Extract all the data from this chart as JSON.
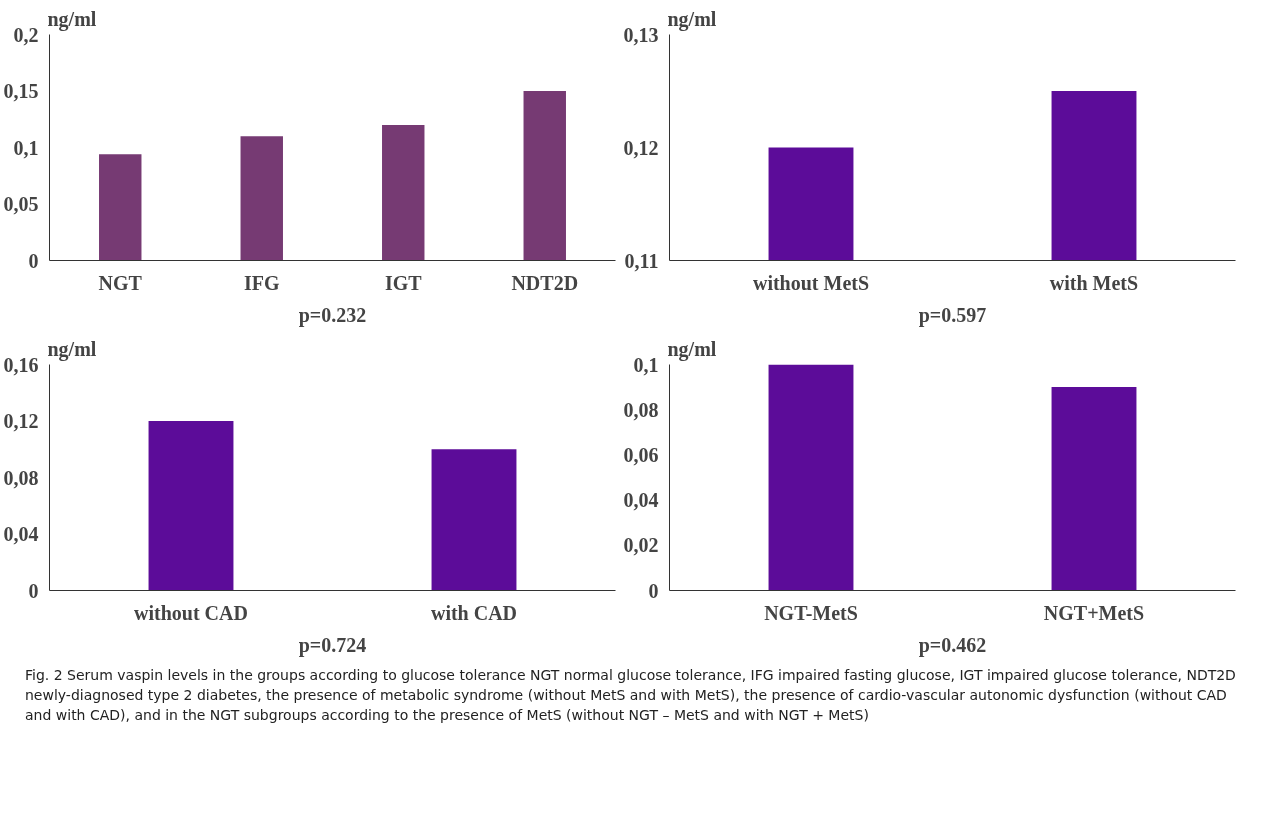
{
  "chart_data": [
    {
      "type": "bar",
      "ylabel": "ng/ml",
      "categories": [
        "NGT",
        "IFG",
        "IGT",
        "NDT2D"
      ],
      "values": [
        0.094,
        0.11,
        0.12,
        0.15
      ],
      "color": "#763a73",
      "ylim": [
        0,
        0.2
      ],
      "yticks": [
        {
          "value": 0,
          "label": "0"
        },
        {
          "value": 0.05,
          "label": "0,05"
        },
        {
          "value": 0.1,
          "label": "0,1"
        },
        {
          "value": 0.15,
          "label": "0,15"
        },
        {
          "value": 0.2,
          "label": "0,2"
        }
      ],
      "grid": false,
      "annotations": [
        "p=0.232"
      ]
    },
    {
      "type": "bar",
      "ylabel": "ng/ml",
      "categories": [
        "without MetS",
        "with MetS"
      ],
      "values": [
        0.12,
        0.125
      ],
      "color": "#5c0c99",
      "ylim": [
        0.11,
        0.13
      ],
      "yticks": [
        {
          "value": 0.11,
          "label": "0,11"
        },
        {
          "value": 0.12,
          "label": "0,12"
        },
        {
          "value": 0.13,
          "label": "0,13"
        }
      ],
      "grid": false,
      "annotations": [
        "p=0.597"
      ]
    },
    {
      "type": "bar",
      "ylabel": "ng/ml",
      "categories": [
        "without CAD",
        "with CAD"
      ],
      "values": [
        0.12,
        0.1
      ],
      "color": "#5c0c99",
      "ylim": [
        0,
        0.16
      ],
      "yticks": [
        {
          "value": 0,
          "label": "0"
        },
        {
          "value": 0.04,
          "label": "0,04"
        },
        {
          "value": 0.08,
          "label": "0,08"
        },
        {
          "value": 0.12,
          "label": "0,12"
        },
        {
          "value": 0.16,
          "label": "0,16"
        }
      ],
      "grid": false,
      "annotations": [
        "p=0.724"
      ]
    },
    {
      "type": "bar",
      "ylabel": "ng/ml",
      "categories": [
        "NGT-MetS",
        "NGT+MetS"
      ],
      "values": [
        0.1,
        0.09
      ],
      "color": "#5c0c99",
      "ylim": [
        0,
        0.1
      ],
      "yticks": [
        {
          "value": 0,
          "label": "0"
        },
        {
          "value": 0.02,
          "label": "0,02"
        },
        {
          "value": 0.04,
          "label": "0,04"
        },
        {
          "value": 0.06,
          "label": "0,06"
        },
        {
          "value": 0.08,
          "label": "0,08"
        },
        {
          "value": 0.1,
          "label": "0,1"
        }
      ],
      "grid": false,
      "annotations": [
        "p=0.462",
        "Fig. 2 Serum vaspin levels in the groups according to glucose tolerance NGT normal glucose tolerance, IFG impaired fasting glucose, IGT impaired glucose tolerance, NDT2D newly-diagnosed type 2 diabetes, the presence of metabolic syndrome (without MetS and with MetS), the presence of cardio-vascular autonomic dysfunction (without CAD and with CAD), and in the NGT subgroups according to the presence of MetS (without NGT – MetS and with NGT + MetS)"
      ]
    }
  ]
}
